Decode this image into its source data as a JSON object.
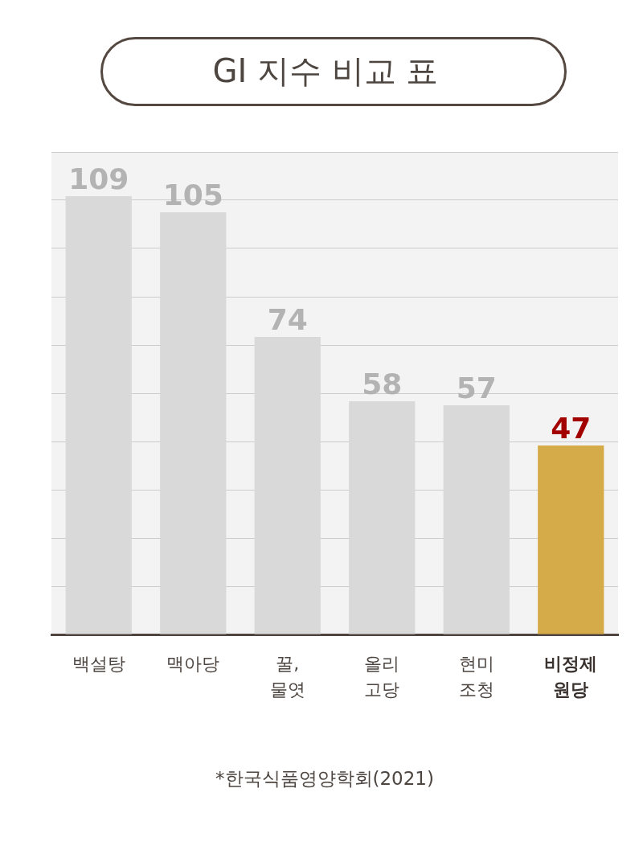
{
  "chart_data": {
    "type": "bar",
    "title": "GI 지수 비교 표",
    "categories": [
      "백설탕",
      "맥아당",
      "꿀, 물엿",
      "올리고당",
      "현미조청",
      "비정제원당"
    ],
    "values": [
      109,
      105,
      74,
      58,
      57,
      47
    ],
    "colors": [
      "#d9d9d9",
      "#d9d9d9",
      "#d9d9d9",
      "#d9d9d9",
      "#d9d9d9",
      "#d4ab48"
    ],
    "data_labels": true,
    "ylim": [
      0,
      120
    ],
    "yticks": [
      {
        "value": 0,
        "label": null
      },
      {
        "value": 12,
        "label": null
      },
      {
        "value": 24,
        "label": null
      },
      {
        "value": 36,
        "label": null
      },
      {
        "value": 48,
        "label": null
      },
      {
        "value": 60,
        "label": null
      },
      {
        "value": 72,
        "label": null
      },
      {
        "value": 84,
        "label": null
      },
      {
        "value": 96,
        "label": null
      },
      {
        "value": 108,
        "label": null
      },
      {
        "value": 120,
        "label": null
      }
    ],
    "grid": "y",
    "tick_labels": "x",
    "annotations": [
      "*한국식품영양학회(2021)"
    ]
  }
}
